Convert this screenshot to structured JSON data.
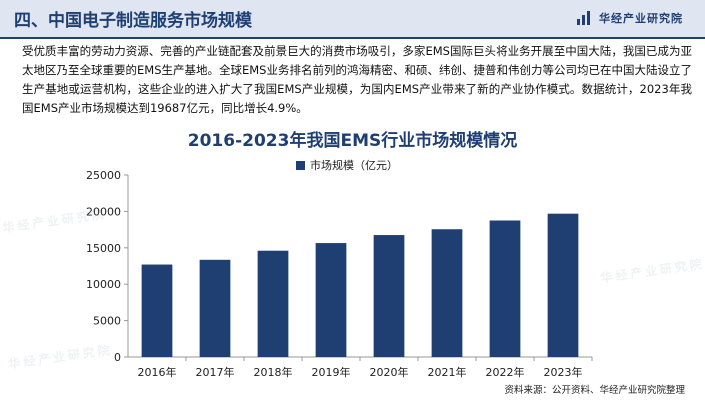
{
  "header": {
    "title": "四、中国电子制造服务市场规模",
    "brand": "华经产业研究院"
  },
  "intro_text": "受优质丰富的劳动力资源、完善的产业链配套及前景巨大的消费市场吸引，多家EMS国际巨头将业务开展至中国大陆，我国已成为亚太地区乃至全球重要的EMS生产基地。全球EMS业务排名前列的鸿海精密、和硕、纬创、捷普和伟创力等公司均已在中国大陆设立了生产基地或运营机构，这些企业的进入扩大了我国EMS产业规模，为国内EMS产业带来了新的产业协作模式。数据统计，2023年我国EMS产业市场规模达到19687亿元，同比增长4.9%。",
  "source": "资料来源：公开资料、华经产业研究院整理",
  "watermark": "华经产业研究院",
  "colors": {
    "accent": "#1f3f73",
    "bar": "#1f3f73",
    "header_bg": "#dfe6f2"
  },
  "chart_data": {
    "type": "bar",
    "title": "2016-2023年我国EMS行业市场规模情况",
    "categories": [
      "2016年",
      "2017年",
      "2018年",
      "2019年",
      "2020年",
      "2021年",
      "2022年",
      "2023年"
    ],
    "series": [
      {
        "name": "市场规模（亿元）",
        "values": [
          12700,
          13350,
          14600,
          15650,
          16750,
          17550,
          18750,
          19687
        ]
      }
    ],
    "ylim": [
      0,
      25000
    ],
    "yticks": [
      0,
      5000,
      10000,
      15000,
      20000,
      25000
    ],
    "grid": false,
    "legend": "top-center"
  }
}
